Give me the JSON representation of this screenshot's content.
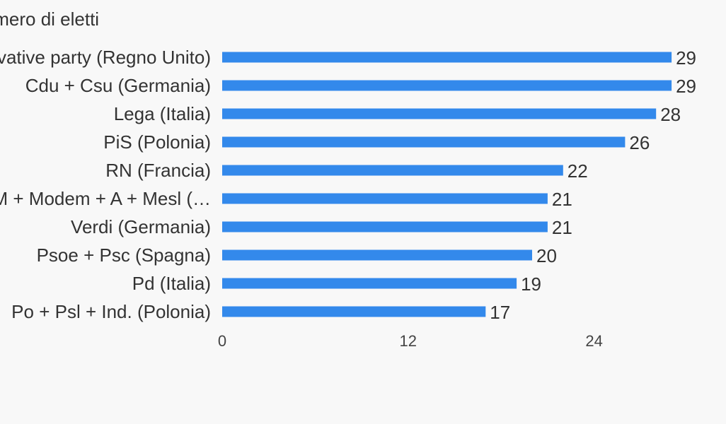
{
  "chart_data": {
    "type": "bar",
    "orientation": "horizontal",
    "title": "Numero di eletti",
    "categories": [
      "Conservative party (Regno Unito)",
      "Cdu + Csu (Germania)",
      "Lega (Italia)",
      "PiS (Polonia)",
      "RN (Francia)",
      "LREM + Modem + A + Mesl (…",
      "Verdi (Germania)",
      "Psoe + Psc (Spagna)",
      "Pd (Italia)",
      "Po + Psl + Ind. (Polonia)"
    ],
    "values": [
      29,
      29,
      28,
      26,
      22,
      21,
      21,
      20,
      19,
      17
    ],
    "xticks": [
      0,
      12,
      24
    ],
    "xlim": [
      0,
      29
    ],
    "xlabel": "",
    "ylabel": "",
    "grid": false,
    "legend": false,
    "bar_color": "#3389eb"
  }
}
